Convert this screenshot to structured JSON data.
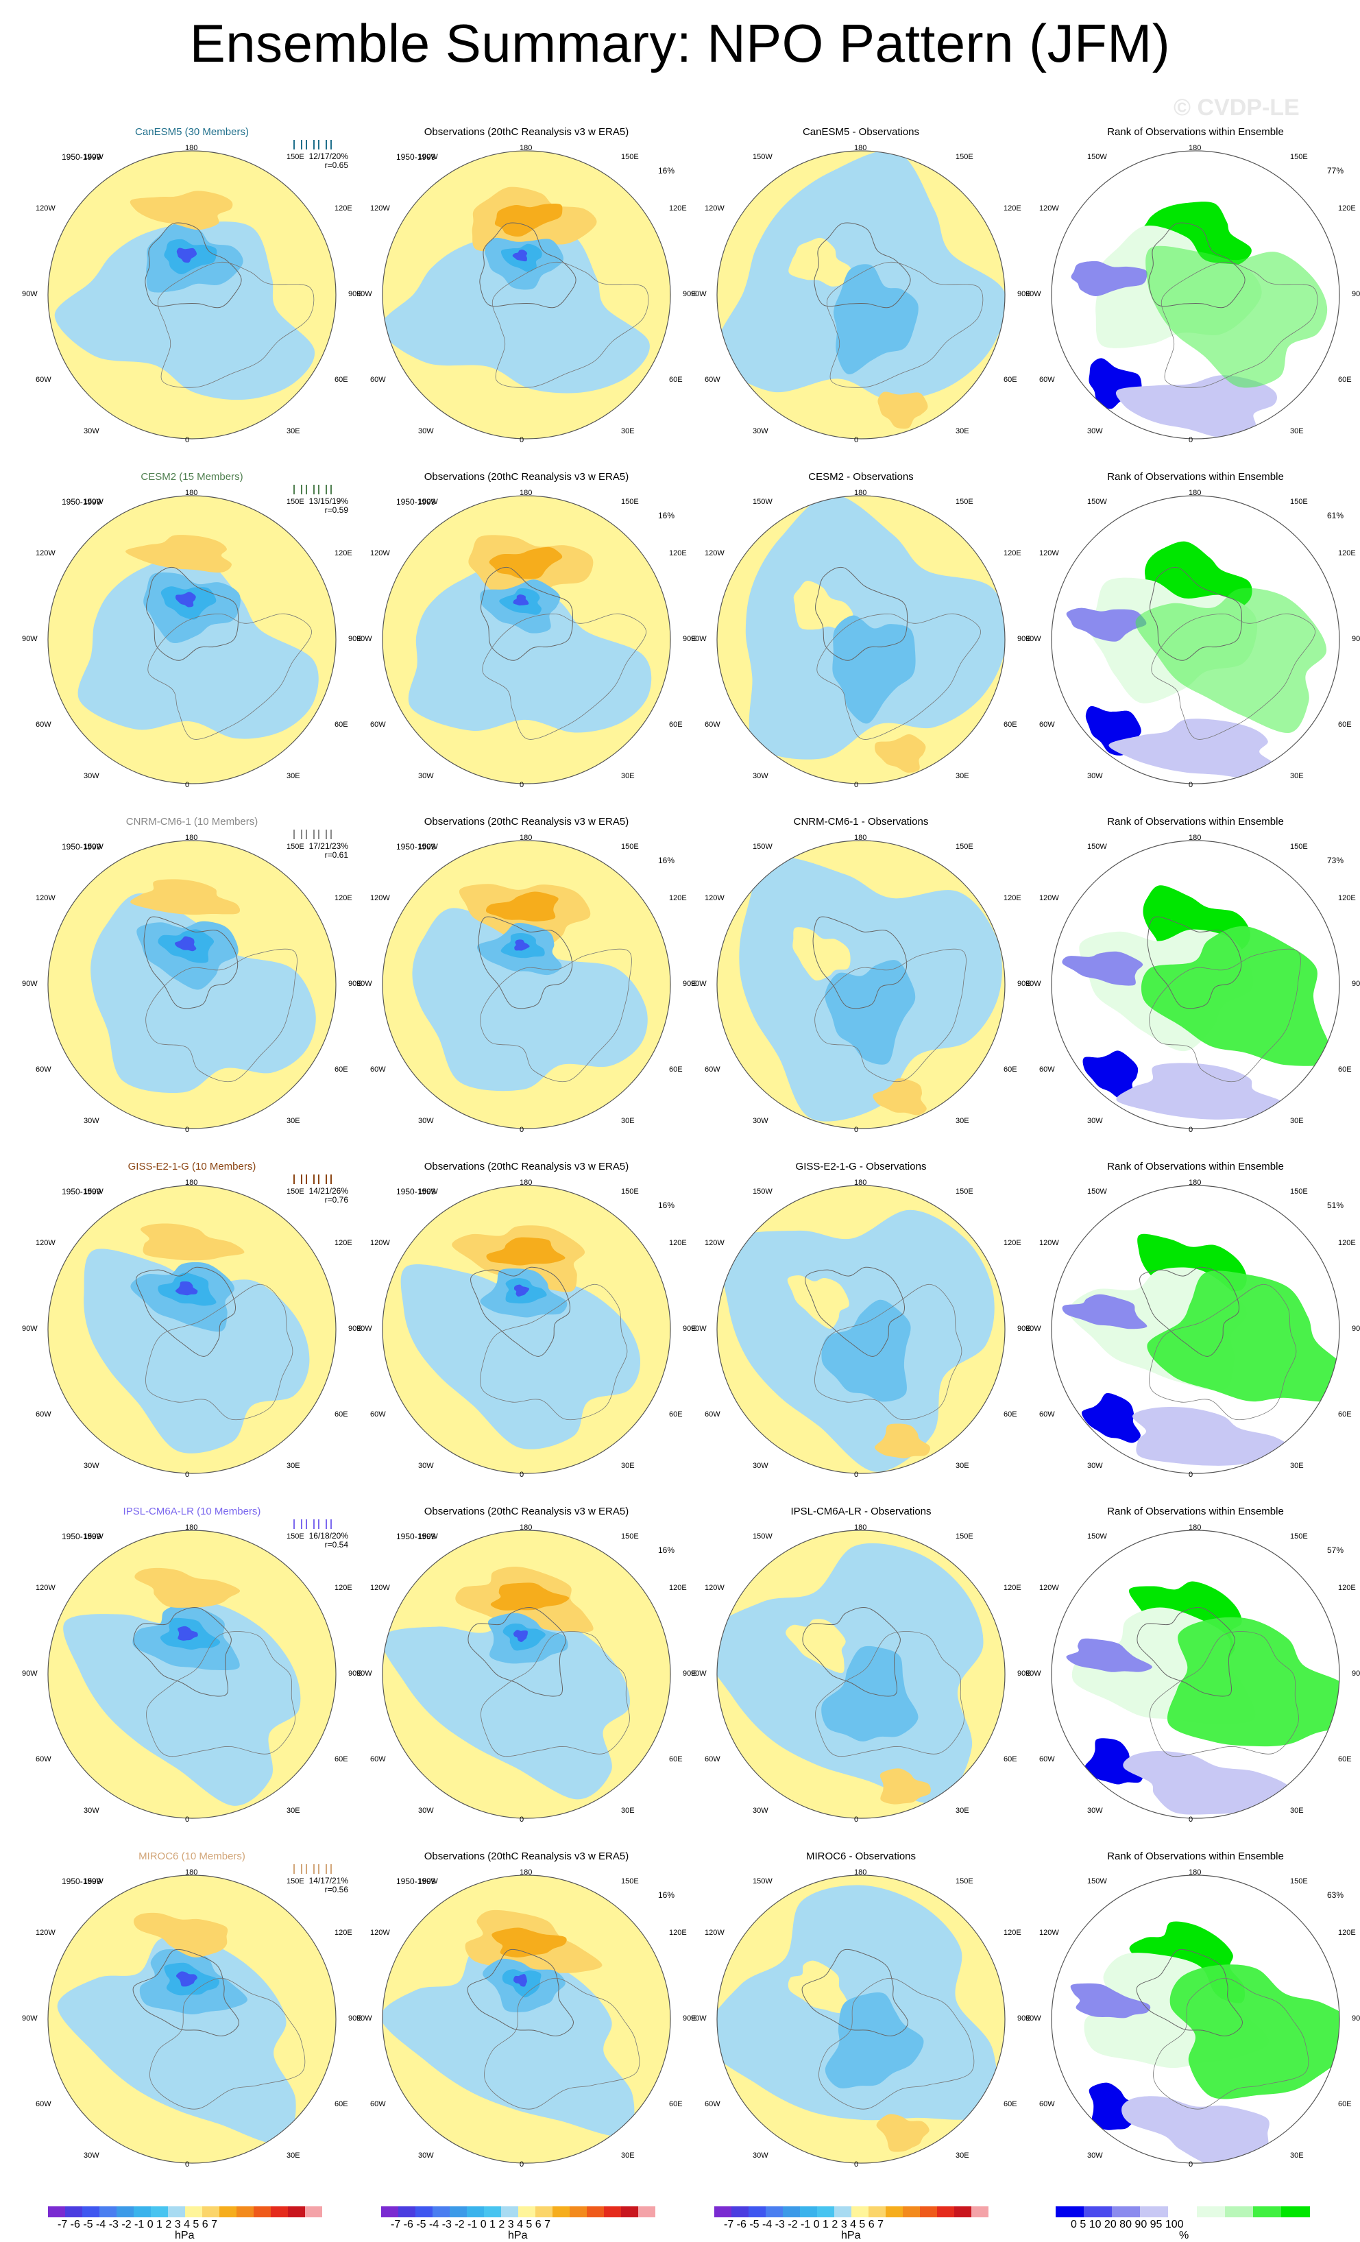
{
  "title": "Ensemble Summary: NPO Pattern (JFM)",
  "watermark": "© CVDP-LE",
  "rows": [
    {
      "model": {
        "title": "CanESM5 (30 Members)",
        "color": "#1f6f8b",
        "period": "1950-1999",
        "stats": "12/17/20%",
        "r": "r=0.65"
      },
      "obs": {
        "title": "Observations (20thC Reanalysis v3 w ERA5)",
        "period": "1950-1999",
        "pct": "16%"
      },
      "diff": {
        "title": "CanESM5 - Observations"
      },
      "rank": {
        "title": "Rank of Observations within Ensemble",
        "pct": "77%"
      }
    },
    {
      "model": {
        "title": "CESM2 (15 Members)",
        "color": "#4f7f4f",
        "period": "1950-1999",
        "stats": "13/15/19%",
        "r": "r=0.59"
      },
      "obs": {
        "title": "Observations (20thC Reanalysis v3 w ERA5)",
        "period": "1950-1999",
        "pct": "16%"
      },
      "diff": {
        "title": "CESM2 - Observations"
      },
      "rank": {
        "title": "Rank of Observations within Ensemble",
        "pct": "61%"
      }
    },
    {
      "model": {
        "title": "CNRM-CM6-1 (10 Members)",
        "color": "#888888",
        "period": "1950-1999",
        "stats": "17/21/23%",
        "r": "r=0.61"
      },
      "obs": {
        "title": "Observations (20thC Reanalysis v3 w ERA5)",
        "period": "1950-1999",
        "pct": "16%"
      },
      "diff": {
        "title": "CNRM-CM6-1 - Observations"
      },
      "rank": {
        "title": "Rank of Observations within Ensemble",
        "pct": "73%"
      }
    },
    {
      "model": {
        "title": "GISS-E2-1-G (10 Members)",
        "color": "#8b4513",
        "period": "1950-1999",
        "stats": "14/21/26%",
        "r": "r=0.76"
      },
      "obs": {
        "title": "Observations (20thC Reanalysis v3 w ERA5)",
        "period": "1950-1999",
        "pct": "16%"
      },
      "diff": {
        "title": "GISS-E2-1-G - Observations"
      },
      "rank": {
        "title": "Rank of Observations within Ensemble",
        "pct": "51%"
      }
    },
    {
      "model": {
        "title": "IPSL-CM6A-LR (10 Members)",
        "color": "#7b68ee",
        "period": "1950-1999",
        "stats": "16/18/20%",
        "r": "r=0.54"
      },
      "obs": {
        "title": "Observations (20thC Reanalysis v3 w ERA5)",
        "period": "1950-1999",
        "pct": "16%"
      },
      "diff": {
        "title": "IPSL-CM6A-LR - Observations"
      },
      "rank": {
        "title": "Rank of Observations within Ensemble",
        "pct": "57%"
      }
    },
    {
      "model": {
        "title": "MIROC6 (10 Members)",
        "color": "#d2a679",
        "period": "1950-1999",
        "stats": "14/17/21%",
        "r": "r=0.56"
      },
      "obs": {
        "title": "Observations (20thC Reanalysis v3 w ERA5)",
        "period": "1950-1999",
        "pct": "16%"
      },
      "diff": {
        "title": "MIROC6 - Observations"
      },
      "rank": {
        "title": "Rank of Observations within Ensemble",
        "pct": "63%"
      }
    }
  ],
  "longitude_labels": [
    "180",
    "150W",
    "150E",
    "120W",
    "120E",
    "90W",
    "90E",
    "60W",
    "60E",
    "30W",
    "30E",
    "0"
  ],
  "hpa_colorbar": {
    "ticks": "-7 -6 -5 -4 -3 -2 -1 0  1  2  3  4  5  6  7",
    "unit": "hPa",
    "colors": [
      "#7a2bd1",
      "#4b3de0",
      "#3f57f0",
      "#4a7ef0",
      "#3c9ae8",
      "#3ab3ec",
      "#48c4f0",
      "#a8dbf2",
      "#fff59a",
      "#fbd56a",
      "#f6ad1c",
      "#f38a1c",
      "#ef5a1a",
      "#e52b1c",
      "#c9161e",
      "#f4a3a8"
    ]
  },
  "rank_colorbar": {
    "ticks": "0   5  10     20       80       90  95 100",
    "unit": "%",
    "colors": [
      "#0000ee",
      "#4b4bee",
      "#8b8bee",
      "#c8c8f4",
      "#ffffff",
      "#e4fce4",
      "#b9f7b9",
      "#40f040",
      "#00e600"
    ]
  }
}
